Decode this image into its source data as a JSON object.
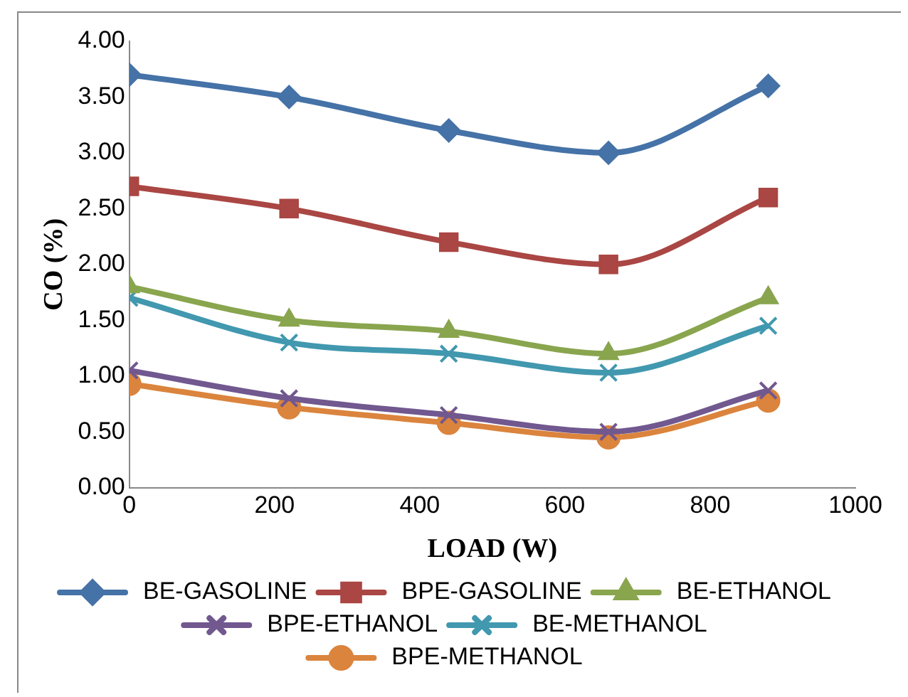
{
  "chart_data": {
    "type": "line",
    "xlabel": "LOAD (W)",
    "ylabel": "CO (%)",
    "x": [
      0,
      220,
      440,
      660,
      880
    ],
    "xlim": [
      0,
      1000
    ],
    "xticks": [
      0,
      200,
      400,
      600,
      800,
      1000
    ],
    "ylim": [
      0,
      4
    ],
    "yticks": [
      {
        "value": 0,
        "label": "0.00"
      },
      {
        "value": 0.5,
        "label": "0.50"
      },
      {
        "value": 1,
        "label": "1.00"
      },
      {
        "value": 1.5,
        "label": "1.50"
      },
      {
        "value": 2,
        "label": "2.00"
      },
      {
        "value": 2.5,
        "label": "2.50"
      },
      {
        "value": 3,
        "label": "3.00"
      },
      {
        "value": 3.5,
        "label": "3.50"
      },
      {
        "value": 4,
        "label": "4.00"
      }
    ],
    "grid": false,
    "legend": "bottom",
    "line_style": "solid",
    "series": [
      {
        "name": "BE-GASOLINE",
        "color": "#4572a7",
        "marker": "diamond",
        "values": [
          3.7,
          3.5,
          3.2,
          3.0,
          3.6
        ]
      },
      {
        "name": "BPE-GASOLINE",
        "color": "#aa4643",
        "marker": "square",
        "values": [
          2.7,
          2.5,
          2.2,
          2.0,
          2.6
        ]
      },
      {
        "name": "BE-ETHANOL",
        "color": "#89a54e",
        "marker": "triangle",
        "values": [
          1.8,
          1.5,
          1.4,
          1.2,
          1.7
        ]
      },
      {
        "name": "BPE-ETHANOL",
        "color": "#71588f",
        "marker": "cross",
        "values": [
          1.05,
          0.8,
          0.65,
          0.5,
          0.87
        ]
      },
      {
        "name": "BE-METHANOL",
        "color": "#4198af",
        "marker": "cross",
        "values": [
          1.7,
          1.3,
          1.2,
          1.03,
          1.45
        ]
      },
      {
        "name": "BPE-METHANOL",
        "color": "#db843d",
        "marker": "circle",
        "values": [
          0.93,
          0.72,
          0.58,
          0.45,
          0.78
        ]
      }
    ]
  }
}
